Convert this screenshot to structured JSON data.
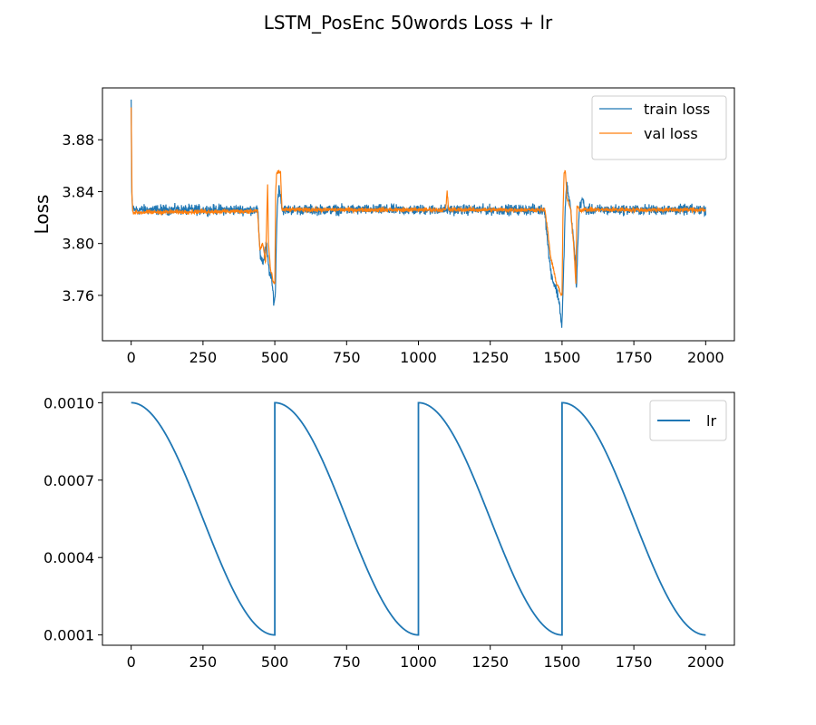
{
  "figure_title": "LSTM_PosEnc 50words Loss + lr",
  "chart_data": [
    {
      "type": "line",
      "title": "",
      "xlabel": "",
      "ylabel": "Loss",
      "xlim": [
        -100,
        2100
      ],
      "ylim": [
        3.725,
        3.92
      ],
      "xticks": [
        0,
        250,
        500,
        750,
        1000,
        1250,
        1500,
        1750,
        2000
      ],
      "yticks": [
        3.76,
        3.8,
        3.84,
        3.88
      ],
      "ytick_labels": [
        "3.76",
        "3.80",
        "3.84",
        "3.88"
      ],
      "grid": false,
      "legend_position": "top-right",
      "series": [
        {
          "name": "train loss",
          "color": "#1f77b4",
          "noise": 0.0035,
          "keypoints": [
            [
              0,
              3.911
            ],
            [
              2,
              3.84
            ],
            [
              5,
              3.826
            ],
            [
              440,
              3.826
            ],
            [
              450,
              3.79
            ],
            [
              460,
              3.785
            ],
            [
              470,
              3.8
            ],
            [
              480,
              3.78
            ],
            [
              490,
              3.77
            ],
            [
              497,
              3.755
            ],
            [
              502,
              3.76
            ],
            [
              505,
              3.8
            ],
            [
              510,
              3.835
            ],
            [
              515,
              3.843
            ],
            [
              520,
              3.838
            ],
            [
              525,
              3.826
            ],
            [
              1440,
              3.826
            ],
            [
              1450,
              3.8
            ],
            [
              1460,
              3.78
            ],
            [
              1470,
              3.77
            ],
            [
              1480,
              3.765
            ],
            [
              1490,
              3.755
            ],
            [
              1495,
              3.745
            ],
            [
              1499,
              3.735
            ],
            [
              1503,
              3.76
            ],
            [
              1508,
              3.8
            ],
            [
              1512,
              3.835
            ],
            [
              1517,
              3.845
            ],
            [
              1522,
              3.838
            ],
            [
              1530,
              3.826
            ],
            [
              1545,
              3.79
            ],
            [
              1550,
              3.765
            ],
            [
              1555,
              3.8
            ],
            [
              1560,
              3.826
            ],
            [
              1570,
              3.835
            ],
            [
              1580,
              3.826
            ],
            [
              2000,
              3.826
            ]
          ]
        },
        {
          "name": "val loss",
          "color": "#ff7f0e",
          "noise": 0.0015,
          "keypoints": [
            [
              0,
              3.905
            ],
            [
              3,
              3.835
            ],
            [
              6,
              3.824
            ],
            [
              440,
              3.825
            ],
            [
              448,
              3.795
            ],
            [
              458,
              3.8
            ],
            [
              468,
              3.785
            ],
            [
              475,
              3.846
            ],
            [
              478,
              3.8
            ],
            [
              485,
              3.78
            ],
            [
              495,
              3.77
            ],
            [
              500,
              3.768
            ],
            [
              503,
              3.84
            ],
            [
              507,
              3.855
            ],
            [
              520,
              3.855
            ],
            [
              525,
              3.826
            ],
            [
              1095,
              3.826
            ],
            [
              1100,
              3.84
            ],
            [
              1105,
              3.826
            ],
            [
              1440,
              3.826
            ],
            [
              1450,
              3.81
            ],
            [
              1460,
              3.79
            ],
            [
              1470,
              3.78
            ],
            [
              1480,
              3.77
            ],
            [
              1490,
              3.765
            ],
            [
              1497,
              3.76
            ],
            [
              1500,
              3.76
            ],
            [
              1503,
              3.82
            ],
            [
              1507,
              3.855
            ],
            [
              1512,
              3.855
            ],
            [
              1517,
              3.835
            ],
            [
              1530,
              3.826
            ],
            [
              1540,
              3.8
            ],
            [
              1548,
              3.77
            ],
            [
              1552,
              3.83
            ],
            [
              1560,
              3.826
            ],
            [
              2000,
              3.826
            ]
          ]
        }
      ]
    },
    {
      "type": "line",
      "title": "",
      "xlabel": "",
      "ylabel": "",
      "xlim": [
        -100,
        2100
      ],
      "ylim": [
        6e-05,
        0.00104
      ],
      "xticks": [
        0,
        250,
        500,
        750,
        1000,
        1250,
        1500,
        1750,
        2000
      ],
      "yticks": [
        0.0001,
        0.0004,
        0.0007,
        0.001
      ],
      "ytick_labels": [
        "0.0001",
        "0.0004",
        "0.0007",
        "0.0010"
      ],
      "grid": false,
      "legend_position": "top-right",
      "series": [
        {
          "name": "lr",
          "color": "#1f77b4",
          "schedule": "cosine-restart",
          "period": 500,
          "max": 0.001,
          "min": 0.0001,
          "x_range": [
            0,
            2000
          ]
        }
      ]
    }
  ]
}
